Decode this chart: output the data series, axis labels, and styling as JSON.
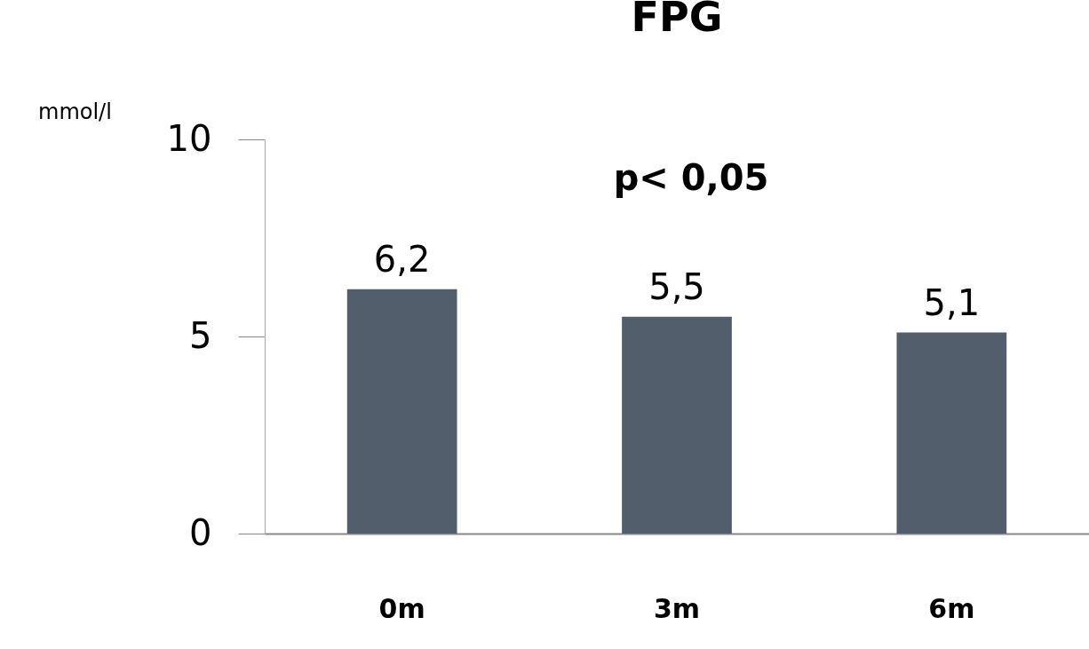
{
  "chart_data": {
    "type": "bar",
    "title": "FPG",
    "ylabel": "mmol/l",
    "categories": [
      "0m",
      "3m",
      "6m"
    ],
    "values": [
      6.2,
      5.5,
      5.1
    ],
    "value_labels": [
      "6,2",
      "5,5",
      "5,1"
    ],
    "color": "#525e6b",
    "ylim": [
      0,
      10
    ],
    "yticks": [
      0,
      5,
      10
    ],
    "grid": false,
    "annotations": [
      "p< 0,05"
    ]
  }
}
